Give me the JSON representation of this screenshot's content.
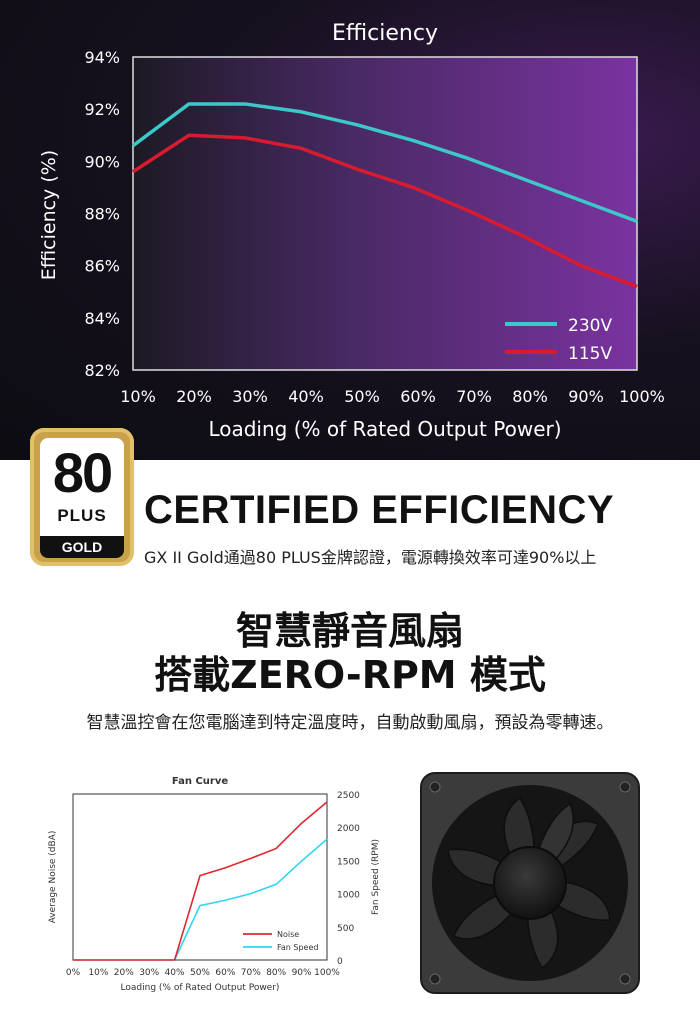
{
  "chart_data": [
    {
      "type": "line",
      "title": "Efficiency",
      "xlabel": "Loading (% of Rated Output Power)",
      "ylabel": "Efficiency (%)",
      "x": [
        10,
        20,
        30,
        40,
        50,
        60,
        70,
        80,
        90,
        100
      ],
      "x_tick_labels": [
        "10%",
        "20%",
        "30%",
        "40%",
        "50%",
        "60%",
        "70%",
        "80%",
        "90%",
        "100%"
      ],
      "y_ticks": [
        82,
        84,
        86,
        88,
        90,
        92,
        94
      ],
      "y_tick_labels": [
        "82%",
        "84%",
        "86%",
        "88%",
        "90%",
        "92%",
        "94%"
      ],
      "ylim": [
        82,
        94
      ],
      "xlim": [
        10,
        100
      ],
      "legend_position": "bottom-right",
      "grid": false,
      "series": [
        {
          "name": "230V",
          "color": "#3cc8c8",
          "values": [
            90.6,
            92.2,
            92.2,
            91.9,
            91.4,
            90.8,
            90.1,
            89.3,
            88.5,
            87.7
          ]
        },
        {
          "name": "115V",
          "color": "#d81b2e",
          "values": [
            89.6,
            91.0,
            90.9,
            90.5,
            89.7,
            89.0,
            88.1,
            87.1,
            86.0,
            85.2
          ]
        }
      ]
    },
    {
      "type": "line",
      "title": "Fan Curve",
      "xlabel": "Loading (% of Rated Output Power)",
      "ylabel": "Average Noise (dBA)",
      "y2label": "Fan Speed (RPM)",
      "x": [
        0,
        10,
        20,
        30,
        40,
        50,
        60,
        70,
        80,
        90,
        100
      ],
      "x_tick_labels": [
        "0%",
        "10%",
        "20%",
        "30%",
        "40%",
        "50%",
        "60%",
        "70%",
        "80%",
        "90%",
        "100%"
      ],
      "y2_ticks": [
        0,
        500,
        1000,
        1500,
        2000,
        2500
      ],
      "y2_tick_labels": [
        "0",
        "500",
        "1000",
        "1500",
        "2000",
        "2500"
      ],
      "y2lim": [
        0,
        2500
      ],
      "legend_position": "bottom-right",
      "grid": false,
      "series": [
        {
          "name": "Noise",
          "color": "#e0262f",
          "axis": "right",
          "values": [
            0,
            0,
            0,
            0,
            0,
            1270,
            1390,
            1530,
            1680,
            2060,
            2380
          ]
        },
        {
          "name": "Fan Speed",
          "color": "#30d5f0",
          "axis": "right",
          "values": [
            0,
            0,
            0,
            0,
            0,
            820,
            900,
            1000,
            1140,
            1490,
            1820
          ]
        }
      ]
    }
  ],
  "badge": {
    "number": "80",
    "plus": "PLUS",
    "level": "GOLD",
    "color": "#c9a14a"
  },
  "certified": {
    "title": "CERTIFIED EFFICIENCY",
    "subtitle": "GX II Gold通過80 PLUS金牌認證，電源轉換效率可達90%以上"
  },
  "fan_section": {
    "title_line1": "智慧靜音風扇",
    "title_line2": "搭載ZERO-RPM 模式",
    "description": "智慧溫控會在您電腦達到特定溫度時，自動啟動風扇，預設為零轉速。"
  }
}
